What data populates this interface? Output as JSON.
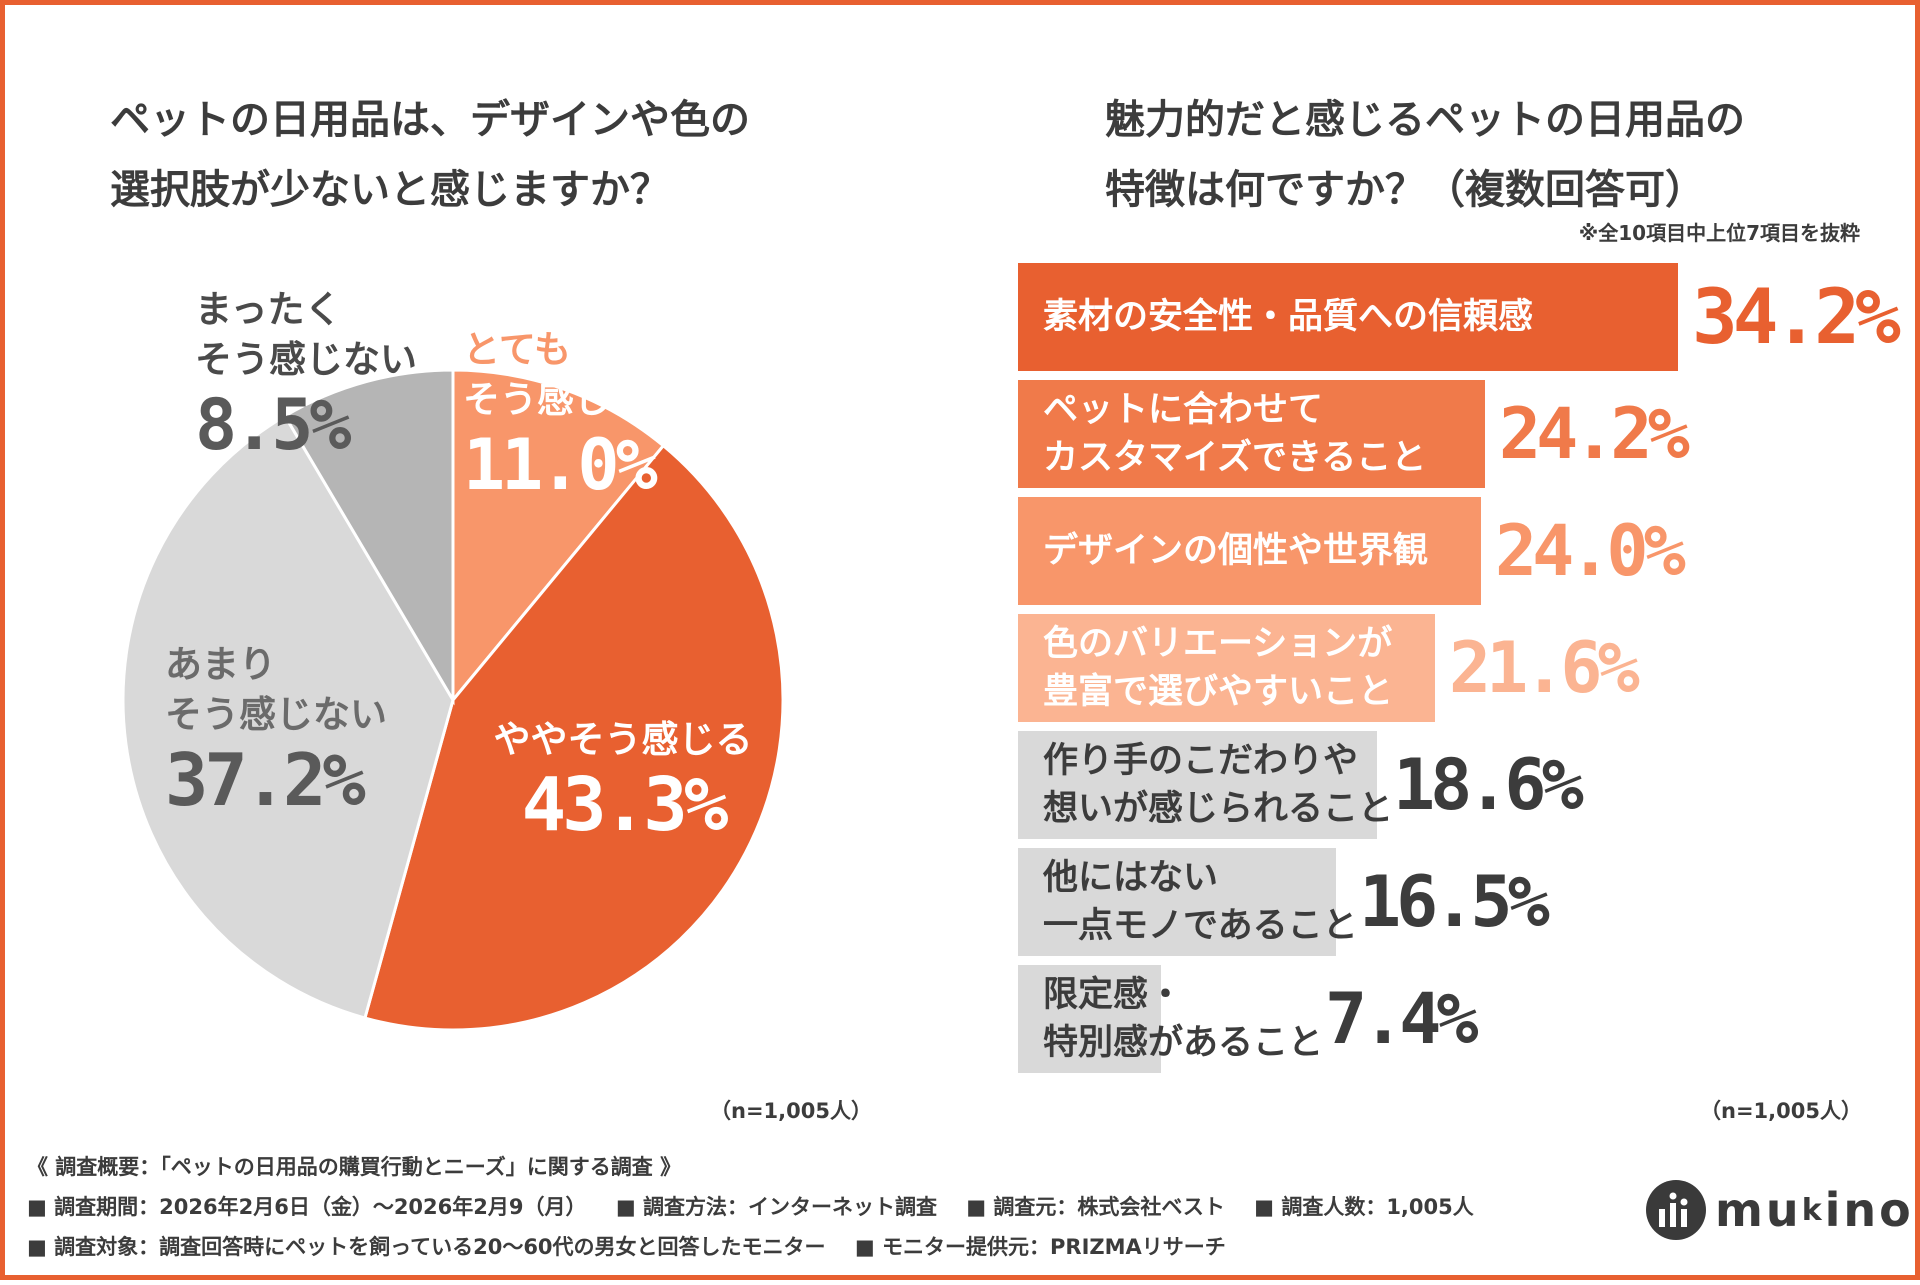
{
  "left_question": {
    "lines": [
      "ペットの日用品は、デザインや色の",
      "選択肢が少ないと感じますか？"
    ],
    "n_label": "（n=1,005人）"
  },
  "right_question": {
    "lines": [
      "魅力的だと感じるペットの日用品の",
      "特徴は何ですか？（複数回答可）"
    ],
    "note": "※全10項目中上位7項目を抜粋",
    "n_label": "（n=1,005人）"
  },
  "colors": {
    "border": "#e86030",
    "dark_orange": "#e86030",
    "orange": "#f07a4a",
    "light_orange": "#f8966a",
    "pale_orange": "#fbb492",
    "light_gray": "#d9d9d9",
    "mid_gray": "#b5b5b5",
    "text": "#3c3c3c"
  },
  "chart_data": [
    {
      "type": "pie",
      "title": "ペットの日用品は、デザインや色の選択肢が少ないと感じますか？",
      "unit": "%",
      "slices": [
        {
          "label_lines": [
            "とても",
            "そう感じる"
          ],
          "value": 11.0,
          "display": "11.0%",
          "color": "#f8966a",
          "label_color": "#f8966a",
          "value_color": "#ffffff"
        },
        {
          "label_lines": [
            "ややそう感じる"
          ],
          "value": 43.3,
          "display": "43.3%",
          "color": "#e86030",
          "label_color": "#ffffff",
          "value_color": "#ffffff"
        },
        {
          "label_lines": [
            "あまり",
            "そう感じない"
          ],
          "value": 37.2,
          "display": "37.2%",
          "color": "#d9d9d9",
          "label_color": "#6b6b6b",
          "value_color": "#5a5a5a"
        },
        {
          "label_lines": [
            "まったく",
            "そう感じない"
          ],
          "value": 8.5,
          "display": "8.5%",
          "color": "#b5b5b5",
          "label_color": "#4a4a4a",
          "value_color": "#5a5a5a"
        }
      ]
    },
    {
      "type": "bar",
      "orientation": "horizontal",
      "title": "魅力的だと感じるペットの日用品の特徴は何ですか？（複数回答可）",
      "unit": "%",
      "xlim": [
        0,
        34.2
      ],
      "bars": [
        {
          "label_lines": [
            "素材の安全性・品質への信頼感"
          ],
          "value": 34.2,
          "display": "34.2%",
          "color": "#e86030",
          "label_color": "#ffffff",
          "value_color": "#e86030"
        },
        {
          "label_lines": [
            "ペットに合わせて",
            "カスタマイズできること"
          ],
          "value": 24.2,
          "display": "24.2%",
          "color": "#f07a4a",
          "label_color": "#ffffff",
          "value_color": "#f07a4a"
        },
        {
          "label_lines": [
            "デザインの個性や世界観"
          ],
          "value": 24.0,
          "display": "24.0%",
          "color": "#f8966a",
          "label_color": "#ffffff",
          "value_color": "#f8966a"
        },
        {
          "label_lines": [
            "色のバリエーションが",
            "豊富で選びやすいこと"
          ],
          "value": 21.6,
          "display": "21.6%",
          "color": "#fbb492",
          "label_color": "#ffffff",
          "value_color": "#fbb492"
        },
        {
          "label_lines": [
            "作り手のこだわりや",
            "想いが感じられること"
          ],
          "value": 18.6,
          "display": "18.6%",
          "color": "#d9d9d9",
          "label_color": "#3c3c3c",
          "value_color": "#3c3c3c"
        },
        {
          "label_lines": [
            "他にはない",
            "一点モノであること"
          ],
          "value": 16.5,
          "display": "16.5%",
          "color": "#d9d9d9",
          "label_color": "#3c3c3c",
          "value_color": "#3c3c3c"
        },
        {
          "label_lines": [
            "限定感・",
            "特別感があること"
          ],
          "value": 7.4,
          "display": "7.4%",
          "color": "#d9d9d9",
          "label_color": "#3c3c3c",
          "value_color": "#3c3c3c"
        }
      ]
    }
  ],
  "footer": {
    "title": "《 調査概要：「ペットの日用品の購買行動とニーズ」に関する調査 》",
    "line2": [
      "■ 調査期間：2026年2月6日（金）～2026年2月9（月）",
      "■ 調査方法：インターネット調査",
      "■ 調査元：株式会社ベスト",
      "■ 調査人数：1,005人"
    ],
    "line3": [
      "■ 調査対象：調査回答時にペットを飼っている20～60代の男女と回答したモニター",
      "■ モニター提供元：PRIZMAリサーチ"
    ]
  },
  "logo": {
    "text": "mu k ino",
    "mark_text": "mi"
  }
}
